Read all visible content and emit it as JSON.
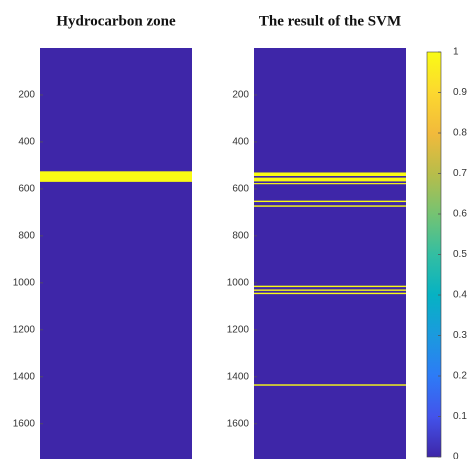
{
  "chart_data": [
    {
      "type": "heatmap",
      "title": "Hydrocarbon zone",
      "ylim": [
        0,
        1750
      ],
      "yticks": [
        200,
        400,
        600,
        800,
        1000,
        1200,
        1400,
        1600
      ],
      "background": 0,
      "bands": [
        {
          "top": 525,
          "bottom": 570,
          "value": 1
        }
      ]
    },
    {
      "type": "heatmap",
      "title": "The result of the SVM",
      "ylim": [
        0,
        1750
      ],
      "yticks": [
        200,
        400,
        600,
        800,
        1000,
        1200,
        1400,
        1600
      ],
      "background": 0,
      "bands": [
        {
          "top": 530,
          "bottom": 545,
          "value": 1
        },
        {
          "top": 552,
          "bottom": 568,
          "value": 1
        },
        {
          "top": 575,
          "bottom": 580,
          "value": 1
        },
        {
          "top": 650,
          "bottom": 656,
          "value": 1
        },
        {
          "top": 670,
          "bottom": 676,
          "value": 1
        },
        {
          "top": 1012,
          "bottom": 1018,
          "value": 1
        },
        {
          "top": 1028,
          "bottom": 1034,
          "value": 1
        },
        {
          "top": 1042,
          "bottom": 1048,
          "value": 1
        },
        {
          "top": 1432,
          "bottom": 1438,
          "value": 1
        }
      ]
    },
    {
      "type": "colorbar",
      "ylim": [
        0,
        1
      ],
      "yticks": [
        0,
        0.1,
        0.2,
        0.3,
        0.4,
        0.5,
        0.6,
        0.7,
        0.8,
        0.9,
        1
      ],
      "colormap": [
        "#3e26a8",
        "#4353eb",
        "#2d7bf6",
        "#1b9ade",
        "#06b2c3",
        "#33bea2",
        "#75c372",
        "#b8bd4a",
        "#f2ba3b",
        "#fcd82f",
        "#f9fb15"
      ]
    }
  ]
}
